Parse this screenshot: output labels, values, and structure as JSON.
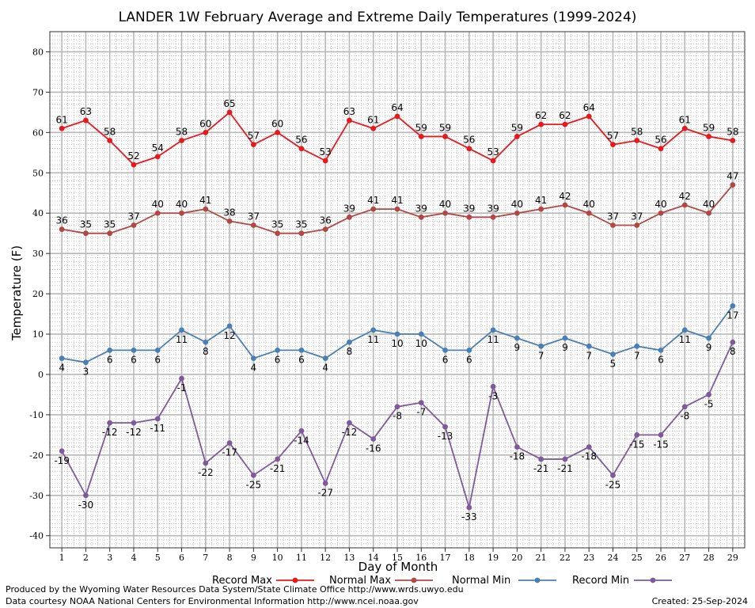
{
  "chart_data": {
    "type": "line",
    "title": "LANDER 1W February Average and Extreme Daily Temperatures (1999-2024)",
    "xlabel": "Day of Month",
    "ylabel": "Temperature (F)",
    "x": [
      1,
      2,
      3,
      4,
      5,
      6,
      7,
      8,
      9,
      10,
      11,
      12,
      13,
      14,
      15,
      16,
      17,
      18,
      19,
      20,
      21,
      22,
      23,
      24,
      25,
      26,
      27,
      28,
      29
    ],
    "xlim": [
      0.5,
      29.5
    ],
    "ylim": [
      -43,
      85
    ],
    "yticks": [
      -40,
      -30,
      -20,
      -10,
      0,
      10,
      20,
      30,
      40,
      50,
      60,
      70,
      80
    ],
    "grid": true,
    "legend_position": "bottom",
    "series": [
      {
        "name": "Record Max",
        "color": "#e8191c",
        "label_position": "above",
        "values": [
          61,
          63,
          58,
          52,
          54,
          58,
          60,
          65,
          57,
          60,
          56,
          53,
          63,
          61,
          64,
          59,
          59,
          56,
          53,
          59,
          62,
          62,
          64,
          57,
          58,
          56,
          61,
          59,
          58
        ]
      },
      {
        "name": "Normal Max",
        "color": "#b34744",
        "label_position": "above",
        "values": [
          36,
          35,
          35,
          37,
          40,
          40,
          41,
          38,
          37,
          35,
          35,
          36,
          39,
          41,
          41,
          39,
          40,
          39,
          39,
          40,
          41,
          42,
          40,
          37,
          37,
          40,
          42,
          40,
          47
        ]
      },
      {
        "name": "Normal Min",
        "color": "#4a7fb5",
        "label_position": "below",
        "values": [
          4,
          3,
          6,
          6,
          6,
          11,
          8,
          12,
          4,
          6,
          6,
          4,
          8,
          11,
          10,
          10,
          6,
          6,
          11,
          9,
          7,
          9,
          7,
          5,
          7,
          6,
          11,
          9,
          17
        ]
      },
      {
        "name": "Record Min",
        "color": "#7f5a9b",
        "label_position": "below",
        "values": [
          -19,
          -30,
          -12,
          -12,
          -11,
          -1,
          -22,
          -17,
          -25,
          -21,
          -14,
          -27,
          -12,
          -16,
          -8,
          -7,
          -13,
          -33,
          -3,
          -18,
          -21,
          -21,
          -18,
          -25,
          -15,
          -15,
          -8,
          -5,
          8
        ]
      }
    ]
  },
  "footer": {
    "produced_by": "Produced by the Wyoming Water Resources Data System/State Climate Office http://www.wrds.uwyo.edu",
    "data_courtesy": "Data courtesy NOAA National Centers for Environmental Information http://www.ncei.noaa.gov",
    "created": "Created:  25-Sep-2024"
  }
}
